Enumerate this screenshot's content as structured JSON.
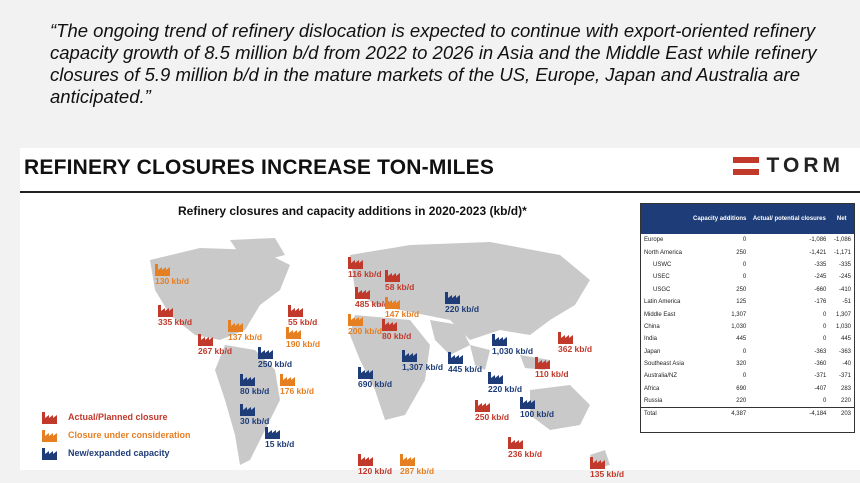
{
  "quote": "“The ongoing trend of refinery dislocation is expected to continue with export-oriented refinery capacity growth of 8.5 million b/d from 2022 to 2026 in Asia and the Middle East while refinery closures of 5.9 million b/d in the mature markets of the US, Europe, Japan and Australia are anticipated.”",
  "slide": {
    "title": "REFINERY CLOSURES INCREASE TON-MILES",
    "logo": "TORM",
    "map_title": "Refinery closures and capacity additions in 2020-2023 (kb/d)*"
  },
  "colors": {
    "closure": "#c0392b",
    "consideration": "#e67e22",
    "new": "#1d3c78",
    "land": "#c9c9c9"
  },
  "markers": [
    {
      "label": "130 kb/d",
      "type": "consideration"
    },
    {
      "label": "335 kb/d",
      "type": "closure"
    },
    {
      "label": "55 kb/d",
      "type": "closure"
    },
    {
      "label": "137 kb/d",
      "type": "consideration"
    },
    {
      "label": "190 kb/d",
      "type": "consideration"
    },
    {
      "label": "267 kb/d",
      "type": "closure"
    },
    {
      "label": "250 kb/d",
      "type": "new"
    },
    {
      "label": "80 kb/d",
      "type": "new"
    },
    {
      "label": "176 kb/d",
      "type": "consideration"
    },
    {
      "label": "30 kb/d",
      "type": "new"
    },
    {
      "label": "15 kb/d",
      "type": "new"
    },
    {
      "label": "116 kb/d",
      "type": "closure"
    },
    {
      "label": "58 kb/d",
      "type": "closure"
    },
    {
      "label": "485 kb/d",
      "type": "closure"
    },
    {
      "label": "147 kb/d",
      "type": "consideration"
    },
    {
      "label": "200 kb/d",
      "type": "consideration"
    },
    {
      "label": "80 kb/d",
      "type": "closure"
    },
    {
      "label": "220 kb/d",
      "type": "new"
    },
    {
      "label": "1,307 kb/d",
      "type": "new"
    },
    {
      "label": "690 kb/d",
      "type": "new"
    },
    {
      "label": "445 kb/d",
      "type": "new"
    },
    {
      "label": "1,030 kb/d",
      "type": "new"
    },
    {
      "label": "362 kb/d",
      "type": "closure"
    },
    {
      "label": "110 kb/d",
      "type": "closure"
    },
    {
      "label": "220 kb/d",
      "type": "new"
    },
    {
      "label": "250 kb/d",
      "type": "closure"
    },
    {
      "label": "100 kb/d",
      "type": "new"
    },
    {
      "label": "236 kb/d",
      "type": "closure"
    },
    {
      "label": "120 kb/d",
      "type": "closure"
    },
    {
      "label": "287 kb/d",
      "type": "consideration"
    },
    {
      "label": "135 kb/d",
      "type": "closure"
    }
  ],
  "legend": [
    {
      "label": "Actual/Planned closure",
      "type": "closure"
    },
    {
      "label": "Closure under consideration",
      "type": "consideration"
    },
    {
      "label": "New/expanded capacity",
      "type": "new"
    }
  ],
  "table": {
    "headers": [
      "",
      "Capacity additions",
      "Actual/ potential closures",
      "Net"
    ],
    "rows": [
      {
        "region": "Europe",
        "add": "0",
        "close": "-1,086",
        "net": "-1,086",
        "sub": false
      },
      {
        "region": "North America",
        "add": "250",
        "close": "-1,421",
        "net": "-1,171",
        "sub": false
      },
      {
        "region": "USWC",
        "add": "0",
        "close": "-335",
        "net": "-335",
        "sub": true
      },
      {
        "region": "USEC",
        "add": "0",
        "close": "-245",
        "net": "-245",
        "sub": true
      },
      {
        "region": "USGC",
        "add": "250",
        "close": "-660",
        "net": "-410",
        "sub": true
      },
      {
        "region": "Latin America",
        "add": "125",
        "close": "-176",
        "net": "-51",
        "sub": false
      },
      {
        "region": "Middle East",
        "add": "1,307",
        "close": "0",
        "net": "1,307",
        "sub": false
      },
      {
        "region": "China",
        "add": "1,030",
        "close": "0",
        "net": "1,030",
        "sub": false
      },
      {
        "region": "India",
        "add": "445",
        "close": "0",
        "net": "445",
        "sub": false
      },
      {
        "region": "Japan",
        "add": "0",
        "close": "-363",
        "net": "-363",
        "sub": false
      },
      {
        "region": "Southeast Asia",
        "add": "320",
        "close": "-360",
        "net": "-40",
        "sub": false
      },
      {
        "region": "Australia/NZ",
        "add": "0",
        "close": "-371",
        "net": "-371",
        "sub": false
      },
      {
        "region": "Africa",
        "add": "690",
        "close": "-407",
        "net": "283",
        "sub": false
      },
      {
        "region": "Russia",
        "add": "220",
        "close": "0",
        "net": "220",
        "sub": false
      }
    ],
    "total": {
      "region": "Total",
      "add": "4,387",
      "close": "-4,184",
      "net": "203"
    }
  }
}
